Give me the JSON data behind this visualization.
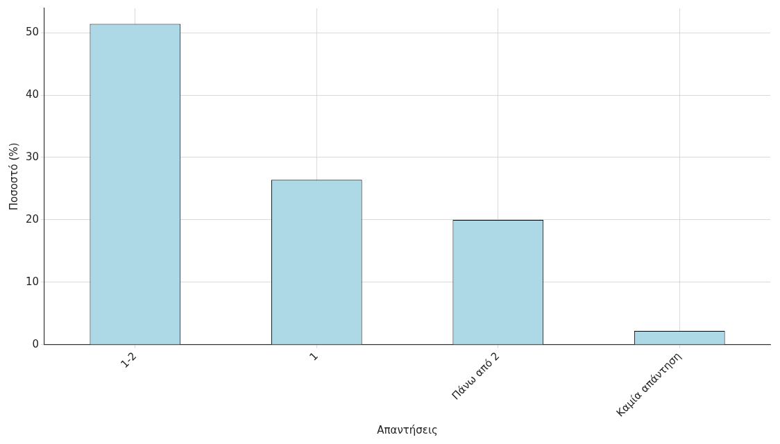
{
  "chart_data": {
    "type": "bar",
    "xlabel": "Απαντήσεις",
    "ylabel": "Ποσοστό (%)",
    "categories": [
      "1-2",
      "1",
      "Πάνω από 2",
      "Καμία απάντηση"
    ],
    "values": [
      51.4,
      26.4,
      20.0,
      2.2
    ],
    "color": "#add8e6",
    "ylim": [
      0,
      53.9
    ],
    "yticks": [
      0,
      10,
      20,
      30,
      40,
      50
    ],
    "grid": true
  }
}
